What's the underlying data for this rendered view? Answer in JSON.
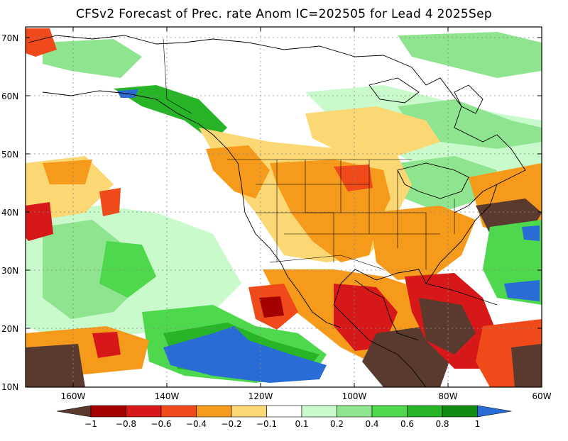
{
  "title": "CFSv2 Forecast of Prec. rate Anom IC=202505 for Lead 4 2025Sep",
  "map": {
    "lat_labels": [
      "70N",
      "60N",
      "50N",
      "40N",
      "30N",
      "20N",
      "10N"
    ],
    "lon_labels": [
      "160W",
      "140W",
      "120W",
      "100W",
      "80W",
      "60W"
    ],
    "extent": {
      "lon_min": -170,
      "lon_max": -60,
      "lat_min": 10,
      "lat_max": 72
    }
  },
  "colorbar": {
    "labels": [
      "−1",
      "−0.8",
      "−0.6",
      "−0.4",
      "−0.2",
      "−0.1",
      "0.1",
      "0.2",
      "0.4",
      "0.6",
      "0.8",
      "1"
    ],
    "colors": [
      "#5a3a2e",
      "#a50000",
      "#d71818",
      "#f04a1a",
      "#f59a1a",
      "#fbd873",
      "#ffffff",
      "#c8facb",
      "#8ee48f",
      "#4dd84d",
      "#27b427",
      "#118b11",
      "#2a6cd6"
    ]
  },
  "colors": {
    "dry_strong": "#5a3a2e",
    "dry_red": "#c41a1a",
    "dry_orange": "#f59a1a",
    "dry_yellow": "#fbd873",
    "wet_light": "#c8facb",
    "wet_green": "#4dd84d",
    "wet_dark": "#118b11",
    "wet_blue": "#2a6cd6"
  }
}
